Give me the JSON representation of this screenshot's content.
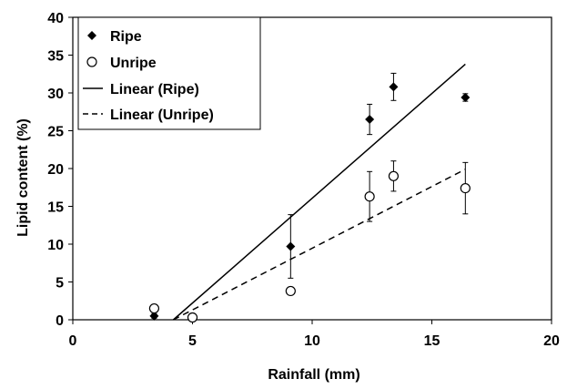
{
  "chart_data": {
    "type": "scatter",
    "title": "",
    "xlabel": "Rainfall (mm)",
    "ylabel": "Lipid content (%)",
    "xlim": [
      0,
      20
    ],
    "ylim": [
      0,
      40
    ],
    "x_ticks": [
      0,
      5,
      10,
      15,
      20
    ],
    "y_ticks": [
      0,
      5,
      10,
      15,
      20,
      25,
      30,
      35,
      40
    ],
    "grid": false,
    "legend_position": "top-left",
    "series": [
      {
        "name": "Ripe",
        "marker": "diamond-filled",
        "points": [
          {
            "x": 3.4,
            "y": 0.5,
            "err": 0.3
          },
          {
            "x": 5.0,
            "y": 0.3,
            "err": 0.2
          },
          {
            "x": 9.1,
            "y": 9.7,
            "err": 4.2
          },
          {
            "x": 12.4,
            "y": 26.5,
            "err": 2.0
          },
          {
            "x": 13.4,
            "y": 30.8,
            "err": 1.8
          },
          {
            "x": 16.4,
            "y": 29.4,
            "err": 0.5
          }
        ]
      },
      {
        "name": "Unripe",
        "marker": "circle-open",
        "points": [
          {
            "x": 3.4,
            "y": 1.5,
            "err": 0.5
          },
          {
            "x": 5.0,
            "y": 0.3,
            "err": 0.2
          },
          {
            "x": 9.1,
            "y": 3.8,
            "err": 0
          },
          {
            "x": 12.4,
            "y": 16.3,
            "err": 3.3
          },
          {
            "x": 13.4,
            "y": 19.0,
            "err": 2.0
          },
          {
            "x": 16.4,
            "y": 17.4,
            "err": 3.4
          }
        ]
      }
    ],
    "trendlines": [
      {
        "name": "Linear (Ripe)",
        "style": "solid",
        "x": [
          4.2,
          16.4
        ],
        "y": [
          0,
          33.8
        ]
      },
      {
        "name": "Linear (Unripe)",
        "style": "dashed",
        "x": [
          4.2,
          16.4
        ],
        "y": [
          0,
          19.9
        ]
      }
    ]
  }
}
